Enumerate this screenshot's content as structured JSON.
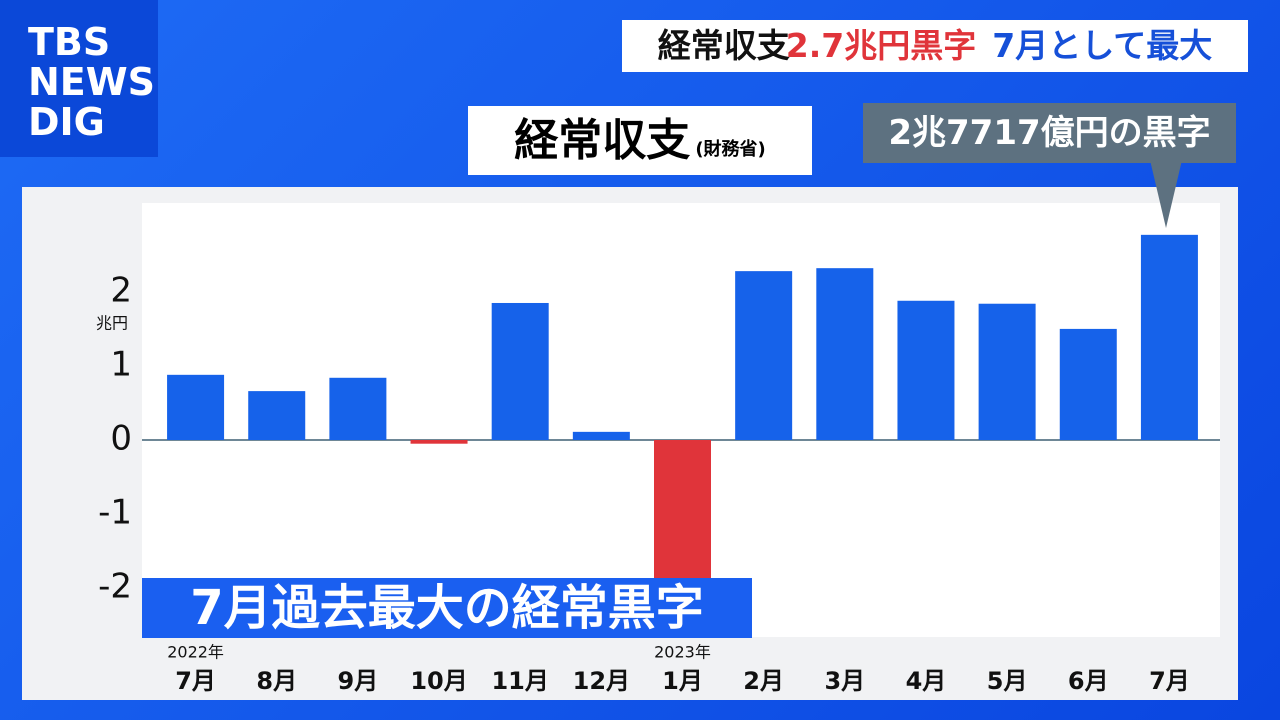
{
  "logo": {
    "lines": [
      "TBS",
      "NEWS",
      "DIG"
    ]
  },
  "header": {
    "title_parts": [
      "経常収支",
      "2.7兆円黒字",
      "7月として最大"
    ]
  },
  "panel_title": {
    "main": "経常収支",
    "source": "(財務省)"
  },
  "callout": "2兆7717億円の黒字",
  "caption": "7月過去最大の経常黒字",
  "chart_data": {
    "type": "bar",
    "categories": [
      "7月",
      "8月",
      "9月",
      "10月",
      "11月",
      "12月",
      "1月",
      "2月",
      "3月",
      "4月",
      "5月",
      "6月",
      "7月"
    ],
    "year_labels": [
      "2022年",
      null,
      null,
      null,
      null,
      null,
      "2023年",
      null,
      null,
      null,
      null,
      null,
      null
    ],
    "values": [
      0.88,
      0.66,
      0.84,
      -0.05,
      1.85,
      0.11,
      -1.98,
      2.28,
      2.32,
      1.88,
      1.84,
      1.5,
      2.77
    ],
    "color": "#1662ea",
    "negative_color": "#e0343a",
    "y_unit": "兆円",
    "ylim": [
      -2.66,
      3.2
    ],
    "yticks": [
      -2,
      -1,
      0,
      1,
      2
    ]
  }
}
